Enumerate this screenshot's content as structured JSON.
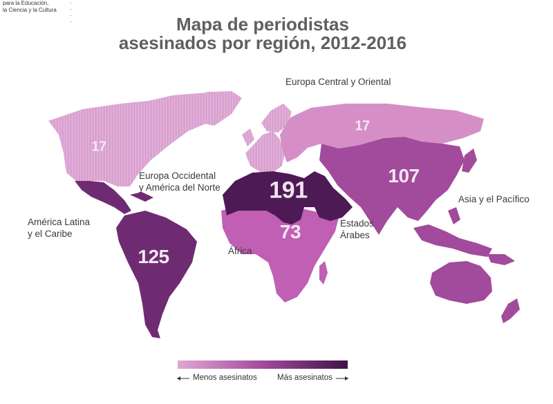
{
  "header": {
    "org_line1": "para la Educación,",
    "org_line2": "la Ciencia y la Cultura",
    "title_line1": "Mapa de periodistas",
    "title_line2": "asesinados por región, 2012-2016"
  },
  "regions": [
    {
      "id": "europa-central-oriental",
      "name": "Europa Central y Oriental",
      "value": "17",
      "color": "#d58fc6"
    },
    {
      "id": "europa-occidental-america-norte",
      "name_line1": "Europa Occidental",
      "name_line2": "y América del Norte",
      "value": "17",
      "color": "#d9a0cf"
    },
    {
      "id": "america-latina-caribe",
      "name_line1": "América Latina",
      "name_line2": "y el Caribe",
      "value": "125",
      "color": "#6f2b72"
    },
    {
      "id": "africa",
      "name": "África",
      "value": "73",
      "color": "#c05fb3"
    },
    {
      "id": "estados-arabes",
      "name_line1": "Estados",
      "name_line2": "Árabes",
      "value": "191",
      "color": "#4d1a55"
    },
    {
      "id": "asia-pacifico",
      "name": "Asia y el Pacífico",
      "value": "107",
      "color": "#a24a9c"
    }
  ],
  "legend": {
    "less": "Menos asesinatos",
    "more": "Más asesinatos",
    "color_low": "#d9a0cf",
    "color_high": "#4d1a55"
  }
}
